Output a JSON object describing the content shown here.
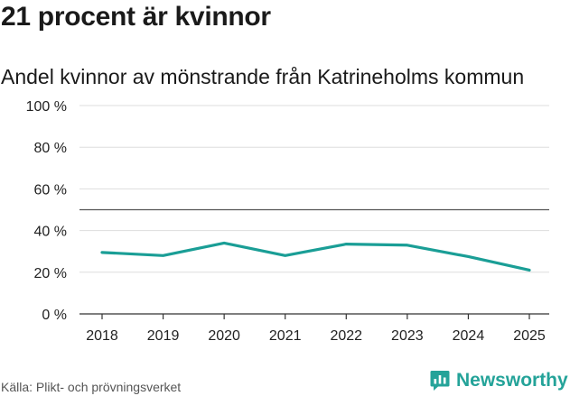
{
  "header": {
    "title": "21 procent är kvinnor"
  },
  "chart_data": {
    "type": "line",
    "title": "21 procent är kvinnor",
    "subtitle": "Andel kvinnor av mönstrande från Katrineholms kommun",
    "xlabel": "",
    "ylabel": "",
    "x": [
      "2018",
      "2019",
      "2020",
      "2021",
      "2022",
      "2023",
      "2024",
      "2025"
    ],
    "series": [
      {
        "name": "Andel kvinnor",
        "values": [
          29.5,
          28,
          34,
          28,
          33.5,
          33,
          27.5,
          21
        ],
        "color": "#1a9e96"
      }
    ],
    "reference_line": 50,
    "ylim": [
      0,
      100
    ],
    "yticks": [
      0,
      20,
      40,
      60,
      80,
      100
    ],
    "ytick_labels": [
      "0 %",
      "20 %",
      "40 %",
      "60 %",
      "80 %",
      "100 %"
    ],
    "grid": true,
    "legend": "none"
  },
  "footer": {
    "source": "Källa: Plikt- och prövningsverket",
    "brand": "Newsworthy",
    "brand_color": "#24a399"
  }
}
